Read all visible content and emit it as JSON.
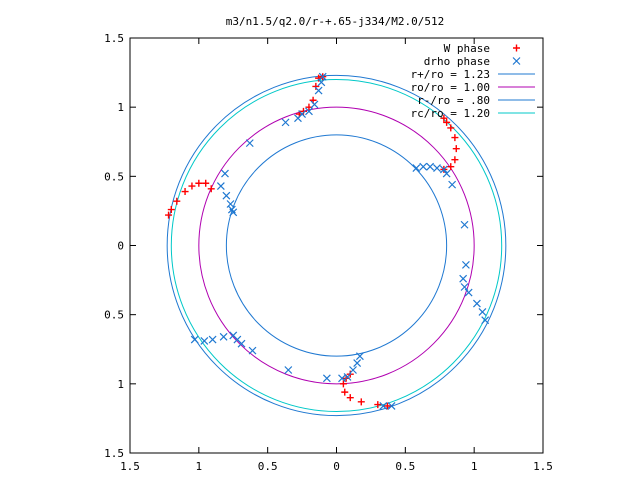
{
  "chart_data": {
    "type": "scatter",
    "title": "m3/n1.5/q2.0/r-+.65-j334/M2.0/512",
    "xlabel": "",
    "ylabel": "",
    "xlim": [
      -1.5,
      1.5
    ],
    "ylim": [
      -1.5,
      1.5
    ],
    "x_ticks": [
      {
        "value": -1.5,
        "label": "1.5"
      },
      {
        "value": -1.0,
        "label": "1"
      },
      {
        "value": -0.5,
        "label": "0.5"
      },
      {
        "value": 0,
        "label": "0"
      },
      {
        "value": 0.5,
        "label": "0.5"
      },
      {
        "value": 1.0,
        "label": "1"
      },
      {
        "value": 1.5,
        "label": "1.5"
      }
    ],
    "y_ticks": [
      {
        "value": 1.5,
        "label": "1.5"
      },
      {
        "value": 1.0,
        "label": "1"
      },
      {
        "value": 0.5,
        "label": "0.5"
      },
      {
        "value": 0,
        "label": "0"
      },
      {
        "value": -0.5,
        "label": "0.5"
      },
      {
        "value": -1.0,
        "label": "1"
      },
      {
        "value": -1.5,
        "label": "1.5"
      }
    ],
    "grid": false,
    "legend_position": "top-right",
    "series": [
      {
        "name": "W phase",
        "marker": "plus",
        "color": "#ff0000",
        "points": [
          [
            -0.1,
            1.22
          ],
          [
            -0.13,
            1.21
          ],
          [
            -0.15,
            1.15
          ],
          [
            -0.17,
            1.05
          ],
          [
            -0.2,
            1.0
          ],
          [
            -0.24,
            0.97
          ],
          [
            -0.27,
            0.95
          ],
          [
            0.78,
            0.55
          ],
          [
            0.83,
            0.57
          ],
          [
            0.86,
            0.62
          ],
          [
            0.87,
            0.7
          ],
          [
            0.86,
            0.78
          ],
          [
            0.83,
            0.85
          ],
          [
            0.8,
            0.89
          ],
          [
            0.78,
            0.92
          ],
          [
            -1.22,
            0.22
          ],
          [
            -1.2,
            0.26
          ],
          [
            -1.16,
            0.32
          ],
          [
            -1.1,
            0.39
          ],
          [
            -1.05,
            0.43
          ],
          [
            -1.0,
            0.45
          ],
          [
            -0.95,
            0.45
          ],
          [
            -0.91,
            0.41
          ],
          [
            0.37,
            -1.16
          ],
          [
            0.3,
            -1.15
          ],
          [
            0.18,
            -1.13
          ],
          [
            0.1,
            -1.1
          ],
          [
            0.06,
            -1.06
          ],
          [
            0.05,
            -1.0
          ],
          [
            0.07,
            -0.96
          ],
          [
            0.1,
            -0.93
          ]
        ]
      },
      {
        "name": "drho phase",
        "marker": "cross",
        "color": "#1f78d1",
        "points": [
          [
            -0.1,
            1.22
          ],
          [
            -0.11,
            1.18
          ],
          [
            -0.13,
            1.12
          ],
          [
            -0.16,
            1.02
          ],
          [
            -0.2,
            0.97
          ],
          [
            -0.25,
            0.95
          ],
          [
            -0.28,
            0.92
          ],
          [
            -0.37,
            0.89
          ],
          [
            -0.63,
            0.74
          ],
          [
            -0.81,
            0.52
          ],
          [
            -0.84,
            0.43
          ],
          [
            -0.8,
            0.36
          ],
          [
            -0.77,
            0.3
          ],
          [
            -0.76,
            0.26
          ],
          [
            -0.75,
            0.24
          ],
          [
            0.58,
            0.56
          ],
          [
            0.63,
            0.57
          ],
          [
            0.68,
            0.57
          ],
          [
            0.73,
            0.56
          ],
          [
            0.78,
            0.55
          ],
          [
            0.8,
            0.52
          ],
          [
            0.84,
            0.44
          ],
          [
            0.93,
            0.15
          ],
          [
            0.94,
            -0.14
          ],
          [
            0.92,
            -0.24
          ],
          [
            0.93,
            -0.3
          ],
          [
            0.96,
            -0.34
          ],
          [
            1.02,
            -0.42
          ],
          [
            1.06,
            -0.48
          ],
          [
            1.08,
            -0.54
          ],
          [
            0.17,
            -0.8
          ],
          [
            0.15,
            -0.85
          ],
          [
            0.12,
            -0.9
          ],
          [
            0.08,
            -0.95
          ],
          [
            0.04,
            -0.96
          ],
          [
            -0.07,
            -0.96
          ],
          [
            -0.35,
            -0.9
          ],
          [
            -0.61,
            -0.76
          ],
          [
            -0.69,
            -0.71
          ],
          [
            -0.72,
            -0.68
          ],
          [
            -0.75,
            -0.65
          ],
          [
            -0.82,
            -0.66
          ],
          [
            -0.9,
            -0.68
          ],
          [
            -0.96,
            -0.69
          ],
          [
            -1.03,
            -0.68
          ],
          [
            0.4,
            -1.16
          ],
          [
            0.34,
            -1.16
          ]
        ]
      }
    ],
    "circles": [
      {
        "name": "r+/ro = 1.23",
        "r": 1.23,
        "color": "#1f78d1"
      },
      {
        "name": "ro/ro = 1.00",
        "r": 1.0,
        "color": "#b000b0"
      },
      {
        "name": "r-/ro = .80",
        "r": 0.8,
        "color": "#1f78d1"
      },
      {
        "name": "rc/ro = 1.20",
        "r": 1.2,
        "color": "#00c8c8"
      }
    ]
  }
}
